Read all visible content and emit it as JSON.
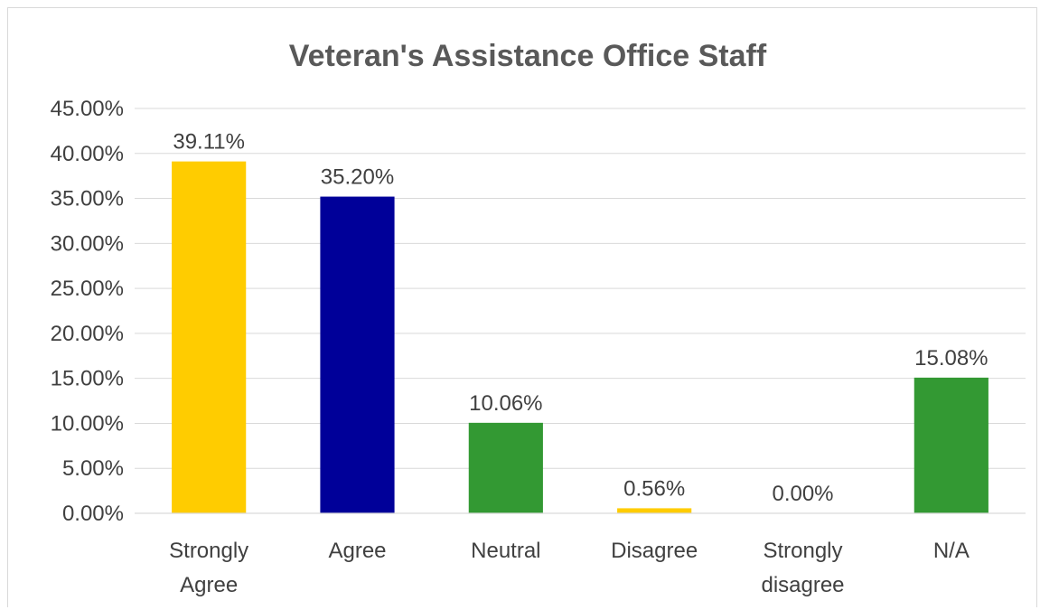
{
  "chart_data": {
    "type": "bar",
    "title": "Veteran's Assistance Office Staff",
    "xlabel": "",
    "ylabel": "",
    "ylim": [
      0,
      45
    ],
    "yticks": [
      "0.00%",
      "5.00%",
      "10.00%",
      "15.00%",
      "20.00%",
      "25.00%",
      "30.00%",
      "35.00%",
      "40.00%",
      "45.00%"
    ],
    "grid": true,
    "legend": "none",
    "categories": [
      [
        "Strongly",
        "Agree"
      ],
      [
        "Agree"
      ],
      [
        "Neutral"
      ],
      [
        "Disagree"
      ],
      [
        "Strongly",
        "disagree"
      ],
      [
        "N/A"
      ]
    ],
    "values": [
      39.11,
      35.2,
      10.06,
      0.56,
      0.0,
      15.08
    ],
    "value_labels": [
      "39.11%",
      "35.20%",
      "10.06%",
      "0.56%",
      "0.00%",
      "15.08%"
    ],
    "bar_colors": [
      "#FFCC00",
      "#000099",
      "#339933",
      "#FFCC00",
      "#000099",
      "#339933"
    ]
  }
}
